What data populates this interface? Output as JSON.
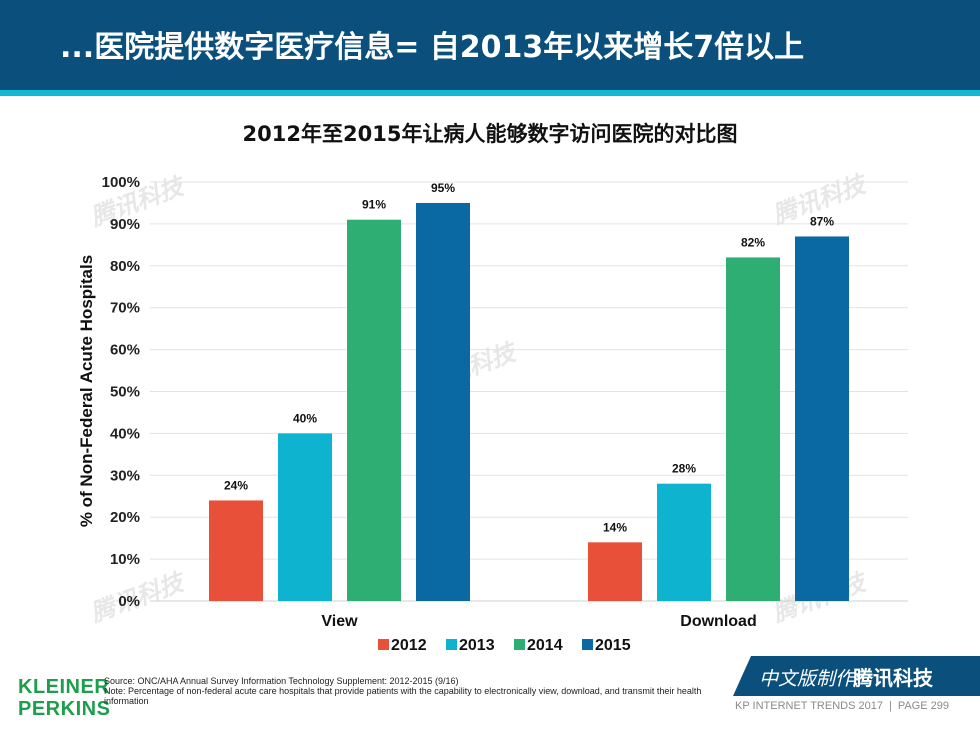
{
  "header": {
    "title": "...医院提供数字医疗信息= 自2013年以来增长7倍以上"
  },
  "chart_data": {
    "type": "bar",
    "title": "2012年至2015年让病人能够数字访问医院的对比图",
    "categories": [
      "View",
      "Download"
    ],
    "series": [
      {
        "name": "2012",
        "color": "#e8503a",
        "values": [
          24,
          14
        ],
        "labels": [
          "24%",
          "14%"
        ]
      },
      {
        "name": "2013",
        "color": "#0db3cf",
        "values": [
          40,
          28
        ],
        "labels": [
          "40%",
          "28%"
        ]
      },
      {
        "name": "2014",
        "color": "#2fae74",
        "values": [
          91,
          82
        ],
        "labels": [
          "91%",
          "82%"
        ]
      },
      {
        "name": "2015",
        "color": "#0a69a3",
        "values": [
          95,
          87
        ],
        "labels": [
          "95%",
          "87%"
        ]
      }
    ],
    "ylabel": "% of Non-Federal Acute Hospitals",
    "xlabel": "",
    "ylim": [
      0,
      100
    ],
    "yticks": [
      "0%",
      "10%",
      "20%",
      "30%",
      "40%",
      "50%",
      "60%",
      "70%",
      "80%",
      "90%",
      "100%"
    ],
    "grid": true,
    "legend": "bottom"
  },
  "footer": {
    "logo_line1": "KLEINER",
    "logo_line2": "PERKINS",
    "source": "Source: ONC/AHA Annual Survey Information Technology Supplement: 2012-2015 (9/16)",
    "note": "Note: Percentage of non-federal acute care hospitals that provide patients with the capability to electronically view, download, and transmit their health information",
    "badge_text": "中文版制作:",
    "badge_brand": "腾讯科技",
    "report": "KP INTERNET TRENDS 2017",
    "separator": "|",
    "page": "PAGE 299"
  },
  "watermark": "腾讯科技"
}
